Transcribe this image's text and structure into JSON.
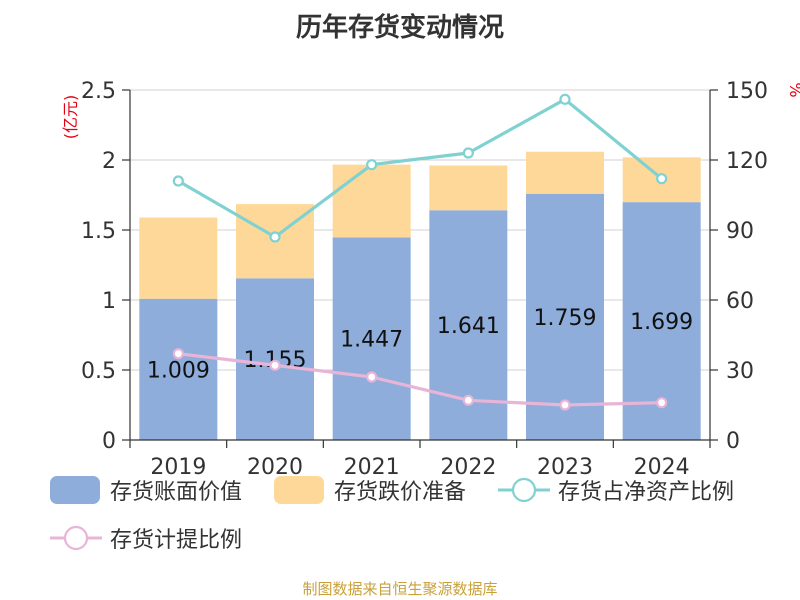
{
  "chart_data": {
    "type": "bar",
    "title": "历年存货变动情况",
    "categories": [
      "2019",
      "2020",
      "2021",
      "2022",
      "2023",
      "2024"
    ],
    "y_left_unit": "(亿元)",
    "y_right_unit": "%",
    "y_left_ticks": [
      "0",
      "0.5",
      "1",
      "1.5",
      "2",
      "2.5"
    ],
    "y_right_ticks": [
      "0",
      "30",
      "60",
      "90",
      "120",
      "150"
    ],
    "ylim_left": [
      0,
      2.5
    ],
    "ylim_right": [
      0,
      150
    ],
    "stacked": true,
    "series": [
      {
        "name": "存货账面价值",
        "type": "bar",
        "axis": "left",
        "color": "#8eaddb",
        "values": [
          1.009,
          1.155,
          1.447,
          1.641,
          1.759,
          1.699
        ],
        "labels": [
          "1.009",
          "1.155",
          "1.447",
          "1.641",
          "1.759",
          "1.699"
        ]
      },
      {
        "name": "存货跌价准备",
        "type": "bar",
        "axis": "left",
        "color": "#fed898",
        "values": [
          0.58,
          0.53,
          0.52,
          0.32,
          0.3,
          0.32
        ]
      },
      {
        "name": "存货占净资产比例",
        "type": "line",
        "axis": "right",
        "color": "#80d1d1",
        "values": [
          111,
          87,
          118,
          123,
          146,
          112
        ]
      },
      {
        "name": "存货计提比例",
        "type": "line",
        "axis": "right",
        "color": "#e8b4d8",
        "values": [
          37,
          32,
          27,
          17,
          15,
          16
        ]
      }
    ],
    "source": "制图数据来自恒生聚源数据库",
    "grid": true
  }
}
